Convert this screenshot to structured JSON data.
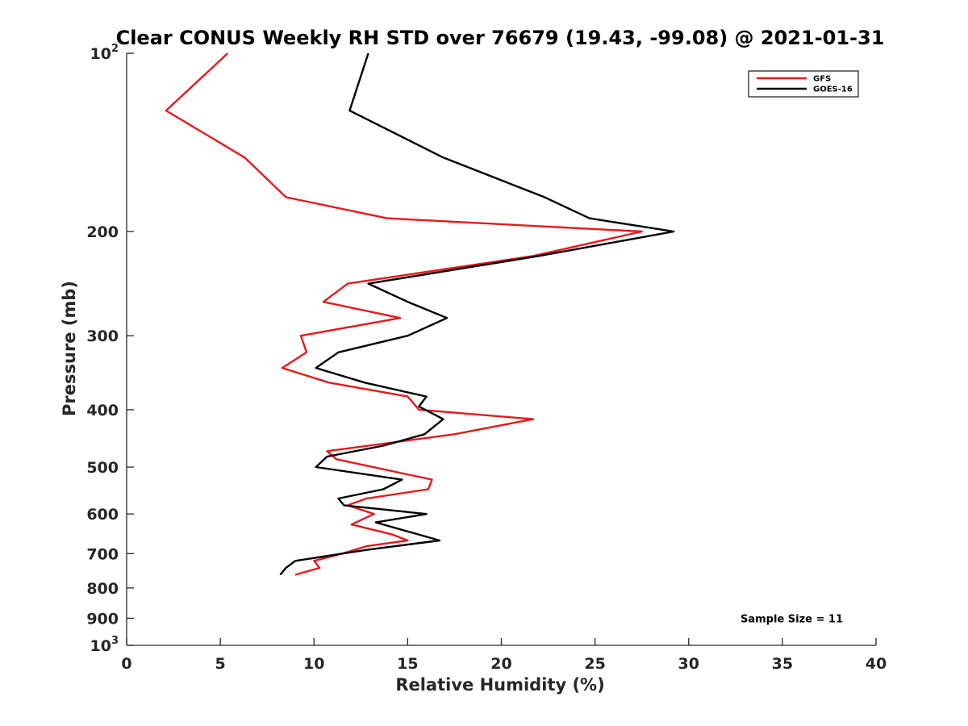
{
  "chart_data": {
    "type": "line",
    "title": "Clear CONUS Weekly RH STD over 76679 (19.43, -99.08) @ 2021-01-31",
    "xlabel": "Relative Humidity (%)",
    "ylabel": "Pressure (mb)",
    "xlim": [
      0,
      40
    ],
    "ylim": [
      100,
      1000
    ],
    "y_scale": "log",
    "y_reversed": true,
    "x_ticks": [
      0,
      5,
      10,
      15,
      20,
      25,
      30,
      35,
      40
    ],
    "y_ticks": [
      {
        "value": 100,
        "base": "10",
        "exp": "2"
      },
      {
        "value": 200,
        "label": "200"
      },
      {
        "value": 300,
        "label": "300"
      },
      {
        "value": 400,
        "label": "400"
      },
      {
        "value": 500,
        "label": "500"
      },
      {
        "value": 600,
        "label": "600"
      },
      {
        "value": 700,
        "label": "700"
      },
      {
        "value": 800,
        "label": "800"
      },
      {
        "value": 900,
        "label": "900"
      },
      {
        "value": 1000,
        "base": "10",
        "exp": "3"
      }
    ],
    "grid": false,
    "legend_position": "top-right",
    "series": [
      {
        "name": "GFS",
        "color": "#e41a1c",
        "points": [
          [
            5.4,
            100
          ],
          [
            2.1,
            125
          ],
          [
            6.3,
            150
          ],
          [
            8.5,
            175
          ],
          [
            13.9,
            190
          ],
          [
            27.5,
            200
          ],
          [
            21.7,
            220
          ],
          [
            11.8,
            245
          ],
          [
            10.5,
            263
          ],
          [
            14.6,
            280
          ],
          [
            9.3,
            300
          ],
          [
            9.6,
            320
          ],
          [
            8.3,
            340
          ],
          [
            10.8,
            360
          ],
          [
            15.0,
            380
          ],
          [
            15.6,
            400
          ],
          [
            21.7,
            415
          ],
          [
            17.5,
            440
          ],
          [
            10.7,
            470
          ],
          [
            11.2,
            485
          ],
          [
            16.3,
            525
          ],
          [
            16.1,
            545
          ],
          [
            12.8,
            565
          ],
          [
            11.8,
            580
          ],
          [
            13.2,
            600
          ],
          [
            12.0,
            625
          ],
          [
            14.2,
            650
          ],
          [
            15.0,
            665
          ],
          [
            12.8,
            680
          ],
          [
            11.5,
            700
          ],
          [
            10.0,
            720
          ],
          [
            10.3,
            740
          ],
          [
            9.0,
            760
          ]
        ]
      },
      {
        "name": "GOES-16",
        "color": "#000000",
        "points": [
          [
            12.9,
            100
          ],
          [
            11.9,
            125
          ],
          [
            16.9,
            150
          ],
          [
            22.3,
            175
          ],
          [
            24.7,
            190
          ],
          [
            29.2,
            200
          ],
          [
            22.0,
            220
          ],
          [
            12.9,
            245
          ],
          [
            15.0,
            263
          ],
          [
            17.1,
            280
          ],
          [
            15.0,
            300
          ],
          [
            11.3,
            320
          ],
          [
            10.1,
            340
          ],
          [
            12.7,
            360
          ],
          [
            16.0,
            380
          ],
          [
            15.6,
            395
          ],
          [
            16.9,
            415
          ],
          [
            15.9,
            440
          ],
          [
            13.7,
            460
          ],
          [
            10.7,
            480
          ],
          [
            10.1,
            500
          ],
          [
            14.7,
            525
          ],
          [
            13.7,
            545
          ],
          [
            11.3,
            565
          ],
          [
            11.6,
            580
          ],
          [
            16.0,
            600
          ],
          [
            13.3,
            620
          ],
          [
            16.7,
            665
          ],
          [
            12.8,
            690
          ],
          [
            11.5,
            700
          ],
          [
            9.0,
            720
          ],
          [
            8.5,
            740
          ],
          [
            8.2,
            760
          ]
        ]
      }
    ],
    "annotations": [
      {
        "text": "Sample Size = 11",
        "x": 35.5,
        "y": 900
      }
    ]
  }
}
